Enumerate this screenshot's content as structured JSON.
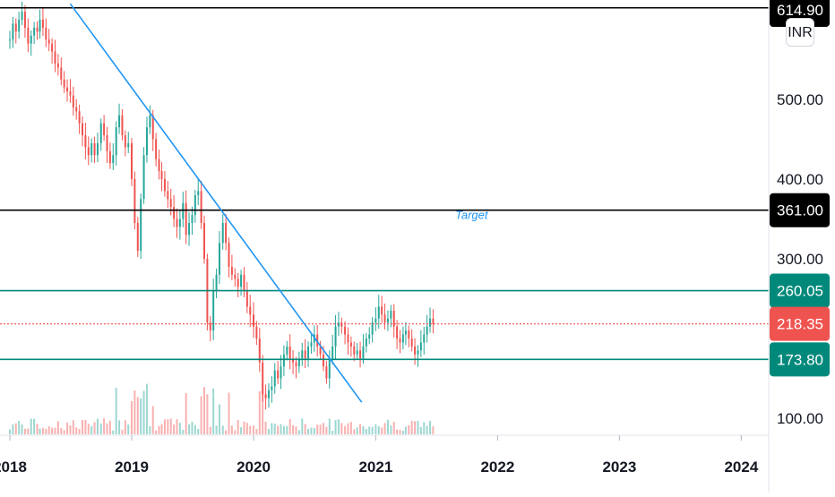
{
  "currency": "INR",
  "colors": {
    "up": "#26a69a",
    "down": "#ef5350",
    "trendline": "#2196f3",
    "resistance_line": "#000000",
    "support_line": "#00897b",
    "last_price": "#ef5350"
  },
  "chart_data": {
    "type": "candlestick",
    "title": "",
    "x_ticks": [
      "2018",
      "2019",
      "2020",
      "2021",
      "2022",
      "2023",
      "2024"
    ],
    "y_ticks": [
      100,
      300,
      400,
      500
    ],
    "y_tick_labels": [
      "100.00",
      "300.00",
      "400.00",
      "500.00"
    ],
    "y_range": [
      60,
      640
    ],
    "x_range": [
      "2017-12-01",
      "2024-07-01"
    ],
    "grid": false,
    "horizontal_levels": [
      {
        "value": 614.9,
        "label": "614.90",
        "color": "#000000",
        "style": "solid"
      },
      {
        "value": 361.0,
        "label": "361.00",
        "color": "#000000",
        "style": "solid"
      },
      {
        "value": 260.05,
        "label": "260.05",
        "color": "#00897b",
        "style": "solid"
      },
      {
        "value": 218.35,
        "label": "218.35",
        "color": "#ef5350",
        "style": "dotted"
      },
      {
        "value": 173.8,
        "label": "173.80",
        "color": "#00897b",
        "style": "solid"
      }
    ],
    "trendline": {
      "from": {
        "date": "2018-07-01",
        "price": 620
      },
      "to": {
        "date": "2020-11-20",
        "price": 120
      }
    },
    "annotations": [
      {
        "text": "Target",
        "date": "2021-10-15",
        "price": 361
      }
    ],
    "weekly_closes": [
      {
        "date": "2018-01",
        "values": [
          575,
          595,
          585,
          600,
          610,
          590,
          570,
          580,
          590,
          585
        ]
      },
      {
        "date": "2018-04",
        "values": [
          600,
          590,
          575,
          570,
          560,
          545,
          540,
          525,
          515,
          510
        ]
      },
      {
        "date": "2018-07",
        "values": [
          505,
          490,
          485,
          470,
          455,
          440,
          430,
          445,
          430,
          445
        ]
      },
      {
        "date": "2018-10",
        "values": [
          470,
          455,
          435,
          420,
          430,
          465,
          480,
          455,
          440,
          445
        ]
      },
      {
        "date": "2019-01",
        "values": [
          400,
          345,
          310,
          375,
          430,
          465,
          480,
          450,
          425,
          410
        ]
      },
      {
        "date": "2019-04",
        "values": [
          400,
          385,
          375,
          365,
          350,
          340,
          350,
          370,
          330,
          345
        ]
      },
      {
        "date": "2019-07",
        "values": [
          355,
          380,
          385,
          345,
          300,
          220,
          210,
          260,
          280,
          320
        ]
      },
      {
        "date": "2019-10",
        "values": [
          345,
          320,
          290,
          280,
          275,
          265,
          280,
          260,
          240,
          230
        ]
      },
      {
        "date": "2020-01",
        "values": [
          215,
          200,
          170,
          130,
          125,
          135,
          140,
          160,
          150,
          165
        ]
      },
      {
        "date": "2020-04",
        "values": [
          180,
          190,
          175,
          170,
          165,
          175,
          185,
          175,
          190,
          195
        ]
      },
      {
        "date": "2020-07",
        "values": [
          205,
          190,
          180,
          165,
          150,
          175,
          190,
          215,
          220,
          215
        ]
      },
      {
        "date": "2020-10",
        "values": [
          205,
          195,
          190,
          180,
          185,
          175,
          190,
          200,
          205,
          220
        ]
      },
      {
        "date": "2021-01",
        "values": [
          225,
          240,
          230,
          220,
          225,
          235,
          215,
          200,
          195,
          205
        ]
      },
      {
        "date": "2021-04",
        "values": [
          210,
          200,
          190,
          180,
          185,
          195,
          205,
          215,
          225,
          218.35
        ]
      }
    ]
  }
}
